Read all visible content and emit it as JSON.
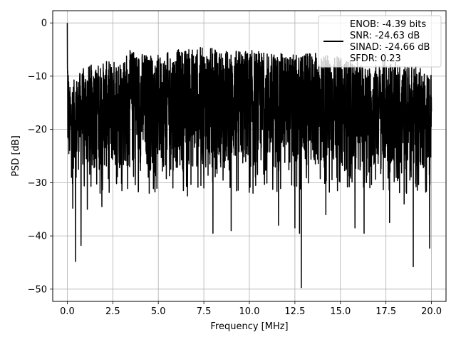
{
  "chart_data": {
    "type": "line",
    "title": "",
    "xlabel": "Frequency [MHz]",
    "ylabel": "PSD [dB]",
    "xlim": [
      -0.8,
      20.8
    ],
    "ylim": [
      -52.3,
      2.3
    ],
    "xticks": [
      0.0,
      2.5,
      5.0,
      7.5,
      10.0,
      12.5,
      15.0,
      17.5,
      20.0
    ],
    "xtick_labels": [
      "0.0",
      "2.5",
      "5.0",
      "7.5",
      "10.0",
      "12.5",
      "15.0",
      "17.5",
      "20.0"
    ],
    "yticks": [
      0,
      -10,
      -20,
      -30,
      -40,
      -50
    ],
    "ytick_labels": [
      "0",
      "−10",
      "−20",
      "−30",
      "−40",
      "−50"
    ],
    "grid": true,
    "legend_position": "top-right",
    "legend_lines": [
      "ENOB: -4.39 bits",
      "SNR: -24.63 dB",
      "SINAD: -24.66 dB",
      "SFDR: 0.23"
    ],
    "series": [
      {
        "color": "#000000",
        "description_of_shape": "dense noise spectrum",
        "x_range": [
          0.0,
          20.0
        ],
        "envelope_upper": [
          [
            0.0,
            0.0
          ],
          [
            0.1,
            -12.0
          ],
          [
            0.5,
            -10.0
          ],
          [
            1.0,
            -8.0
          ],
          [
            2.5,
            -7.0
          ],
          [
            3.5,
            -5.0
          ],
          [
            5.0,
            -6.0
          ],
          [
            6.0,
            -5.0
          ],
          [
            7.5,
            -4.5
          ],
          [
            8.5,
            -5.0
          ],
          [
            10.0,
            -5.0
          ],
          [
            12.5,
            -6.0
          ],
          [
            14.0,
            -5.5
          ],
          [
            15.5,
            -7.0
          ],
          [
            16.5,
            -8.0
          ],
          [
            17.5,
            -7.0
          ],
          [
            19.0,
            -8.0
          ],
          [
            20.0,
            -9.0
          ]
        ],
        "envelope_lower_typical": -28.0,
        "deep_dips": [
          [
            0.3,
            -34.8
          ],
          [
            0.45,
            -44.8
          ],
          [
            0.75,
            -41.8
          ],
          [
            1.1,
            -35.0
          ],
          [
            1.9,
            -34.5
          ],
          [
            1.8,
            -32.0
          ],
          [
            3.0,
            -31.5
          ],
          [
            4.5,
            -32.0
          ],
          [
            5.8,
            -31.0
          ],
          [
            7.5,
            -31.0
          ],
          [
            8.0,
            -39.5
          ],
          [
            9.0,
            -39.0
          ],
          [
            11.6,
            -38.0
          ],
          [
            12.5,
            -38.5
          ],
          [
            12.75,
            -39.5
          ],
          [
            12.85,
            -49.7
          ],
          [
            14.2,
            -36.0
          ],
          [
            15.8,
            -38.5
          ],
          [
            16.3,
            -39.5
          ],
          [
            17.7,
            -37.5
          ],
          [
            19.0,
            -45.8
          ],
          [
            19.9,
            -42.3
          ],
          [
            18.5,
            -34.0
          ],
          [
            10.2,
            -32.0
          ],
          [
            6.6,
            -32.5
          ]
        ]
      }
    ]
  }
}
